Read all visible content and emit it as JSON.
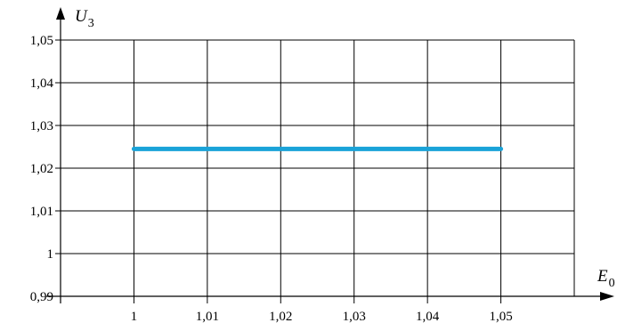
{
  "chart_data": {
    "type": "line",
    "title": "",
    "xlabel": {
      "main": "E",
      "sub": "0"
    },
    "ylabel": {
      "main": "U",
      "sub": "3"
    },
    "x_ticks": [
      "1",
      "1,01",
      "1,02",
      "1,03",
      "1,04",
      "1,05"
    ],
    "y_ticks": [
      "0,99",
      "1",
      "1,01",
      "1,02",
      "1,03",
      "1,04",
      "1,05"
    ],
    "xlim": [
      0.99,
      1.06
    ],
    "ylim": [
      0.99,
      1.05
    ],
    "grid": true,
    "legend": "none",
    "series": [
      {
        "x": [
          1.0,
          1.05
        ],
        "y": [
          1.0245,
          1.0245
        ],
        "color": "#1aa3d8"
      }
    ]
  }
}
